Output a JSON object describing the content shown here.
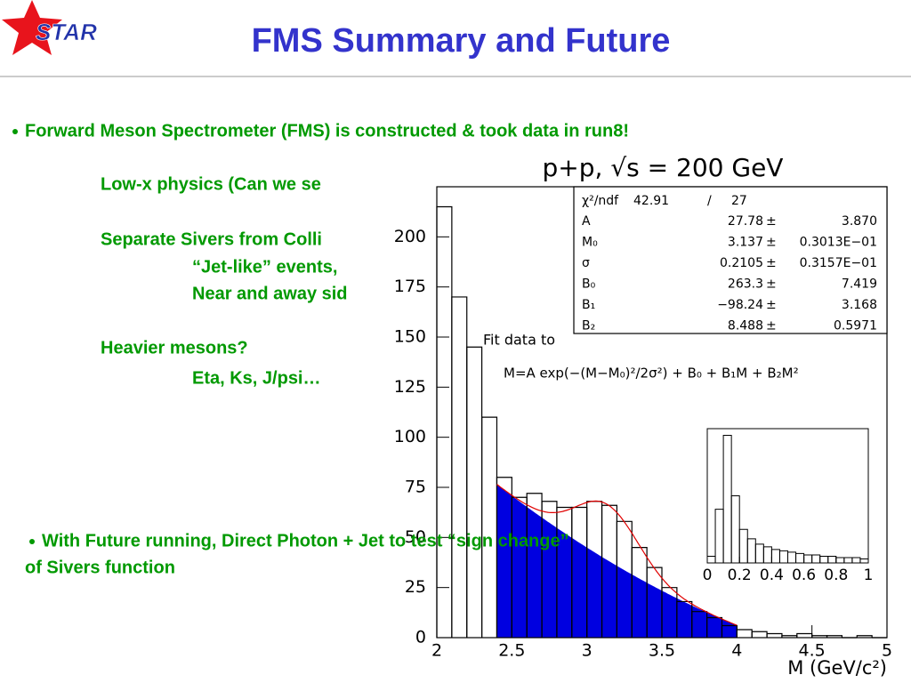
{
  "header": {
    "logo": "STAR",
    "title": "FMS Summary and Future"
  },
  "body": {
    "bullet_1": "Forward Meson Spectrometer (FMS) is constructed & took data in run8!",
    "items": [
      {
        "text": "Low-x physics (Can we se",
        "level": 1
      },
      {
        "text": "Separate Sivers from Colli",
        "level": 1
      },
      {
        "text": "“Jet-like” events,",
        "level": 2
      },
      {
        "text": "Near and away sid",
        "level": 2
      },
      {
        "text": "Heavier mesons?",
        "level": 1
      },
      {
        "text": "Eta, Ks, J/psi…",
        "level": 2
      }
    ],
    "bullet_2": [
      "With Future running, Direct Photon + Jet to test “sign change”",
      "of Sivers function"
    ]
  },
  "plot": {
    "type": "histogram",
    "title": "p+p, √s = 200 GeV",
    "x_label": "M (GeV/c²)",
    "fit_note": "Fit data to",
    "formula": "M=A exp(−(M−M₀)²/2σ²) + B₀ + B₁M + B₂M²",
    "xlim": [
      2,
      5
    ],
    "ylim": [
      0,
      225
    ],
    "xticks": [
      2,
      2.5,
      3,
      3.5,
      4,
      4.5,
      5
    ],
    "yticks": [
      0,
      25,
      50,
      75,
      100,
      125,
      150,
      175,
      200
    ],
    "bins": [
      2.0,
      2.1,
      2.2,
      2.3,
      2.4,
      2.5,
      2.6,
      2.7,
      2.8,
      2.9,
      3.0,
      3.1,
      3.2,
      3.3,
      3.4,
      3.5,
      3.6,
      3.7,
      3.8,
      3.9,
      4.0,
      4.1,
      4.2,
      4.3,
      4.4,
      4.5,
      4.6,
      4.7,
      4.8,
      4.9,
      5.0
    ],
    "values": [
      215,
      170,
      145,
      110,
      80,
      70,
      72,
      68,
      65,
      65,
      68,
      66,
      58,
      45,
      35,
      25,
      18,
      13,
      10,
      6,
      4,
      3,
      2,
      1,
      2,
      1,
      1,
      0,
      1,
      0
    ],
    "fit_range": [
      2.4,
      4.0
    ],
    "fit_color": "#e00000",
    "background_color": "#0000e0",
    "chi2": {
      "name": "χ²/ndf",
      "value": 42.91,
      "sep": "/",
      "ndf": 27
    },
    "pm": "±",
    "params": [
      {
        "name": "A",
        "value": 27.78,
        "error": {
          "value": 3.87,
          "label": "3.870"
        }
      },
      {
        "name": "M₀",
        "value": 3.137,
        "error": {
          "value": 0.03013,
          "label": "0.3013E−01"
        }
      },
      {
        "name": "σ",
        "value": 0.2105,
        "error": {
          "value": 0.03157,
          "label": "0.3157E−01"
        }
      },
      {
        "name": "B₀",
        "value": 263.3,
        "error": 7.419
      },
      {
        "name": "B₁",
        "value": {
          "value": -98.24,
          "label": "−98.24"
        },
        "error": 3.168
      },
      {
        "name": "B₂",
        "value": 8.488,
        "error": 0.5971
      }
    ],
    "inset": {
      "xlim": [
        0,
        1
      ],
      "ylim": [
        0,
        100
      ],
      "xticks": [
        0,
        0.2,
        0.4,
        0.6,
        0.8,
        1
      ],
      "bins": [
        0,
        0.05,
        0.1,
        0.15,
        0.2,
        0.25,
        0.3,
        0.35,
        0.4,
        0.45,
        0.5,
        0.55,
        0.6,
        0.65,
        0.7,
        0.75,
        0.8,
        0.85,
        0.9,
        0.95,
        1
      ],
      "values": [
        5,
        40,
        95,
        50,
        25,
        18,
        14,
        12,
        10,
        9,
        8,
        7,
        6,
        6,
        5,
        5,
        4,
        4,
        4,
        3
      ]
    }
  }
}
